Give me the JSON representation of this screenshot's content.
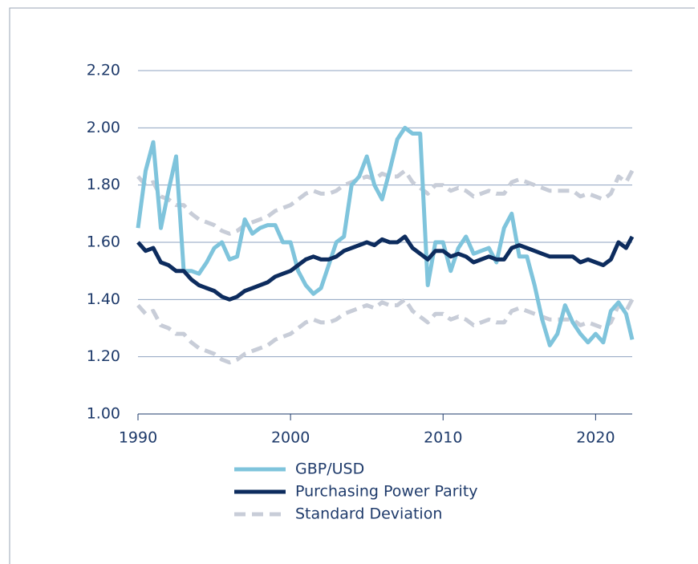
{
  "chart_data": {
    "type": "line",
    "x": [
      1990,
      1990.5,
      1991,
      1991.5,
      1992,
      1992.5,
      1993,
      1993.5,
      1994,
      1994.5,
      1995,
      1995.5,
      1996,
      1996.5,
      1997,
      1997.5,
      1998,
      1998.5,
      1999,
      1999.5,
      2000,
      2000.5,
      2001,
      2001.5,
      2002,
      2002.5,
      2003,
      2003.5,
      2004,
      2004.5,
      2005,
      2005.5,
      2006,
      2006.5,
      2007,
      2007.5,
      2008,
      2008.5,
      2009,
      2009.5,
      2010,
      2010.5,
      2011,
      2011.5,
      2012,
      2012.5,
      2013,
      2013.5,
      2014,
      2014.5,
      2015,
      2015.5,
      2016,
      2016.5,
      2017,
      2017.5,
      2018,
      2018.5,
      2019,
      2019.5,
      2020,
      2020.5,
      2021,
      2021.5,
      2022,
      2022.4
    ],
    "series": [
      {
        "name": "GBP/USD",
        "color": "#7fc4dc",
        "values": [
          1.65,
          1.85,
          1.95,
          1.65,
          1.78,
          1.9,
          1.5,
          1.5,
          1.49,
          1.53,
          1.58,
          1.6,
          1.54,
          1.55,
          1.68,
          1.63,
          1.65,
          1.66,
          1.66,
          1.6,
          1.6,
          1.5,
          1.45,
          1.42,
          1.44,
          1.52,
          1.6,
          1.62,
          1.8,
          1.83,
          1.9,
          1.8,
          1.75,
          1.85,
          1.96,
          2.0,
          1.98,
          1.98,
          1.45,
          1.6,
          1.6,
          1.5,
          1.58,
          1.62,
          1.56,
          1.57,
          1.58,
          1.53,
          1.65,
          1.7,
          1.55,
          1.55,
          1.45,
          1.33,
          1.24,
          1.28,
          1.38,
          1.32,
          1.28,
          1.25,
          1.28,
          1.25,
          1.36,
          1.39,
          1.35,
          1.26
        ]
      },
      {
        "name": "Purchasing Power Parity",
        "color": "#0d2c5e",
        "values": [
          1.6,
          1.57,
          1.58,
          1.53,
          1.52,
          1.5,
          1.5,
          1.47,
          1.45,
          1.44,
          1.43,
          1.41,
          1.4,
          1.41,
          1.43,
          1.44,
          1.45,
          1.46,
          1.48,
          1.49,
          1.5,
          1.52,
          1.54,
          1.55,
          1.54,
          1.54,
          1.55,
          1.57,
          1.58,
          1.59,
          1.6,
          1.59,
          1.61,
          1.6,
          1.6,
          1.62,
          1.58,
          1.56,
          1.54,
          1.57,
          1.57,
          1.55,
          1.56,
          1.55,
          1.53,
          1.54,
          1.55,
          1.54,
          1.54,
          1.58,
          1.59,
          1.58,
          1.57,
          1.56,
          1.55,
          1.55,
          1.55,
          1.55,
          1.53,
          1.54,
          1.53,
          1.52,
          1.54,
          1.6,
          1.58,
          1.62
        ]
      },
      {
        "name": "Standard Deviation",
        "color": "#c8cdd8",
        "dashed": true,
        "upper": [
          1.83,
          1.8,
          1.81,
          1.76,
          1.75,
          1.73,
          1.73,
          1.7,
          1.68,
          1.67,
          1.66,
          1.64,
          1.63,
          1.64,
          1.66,
          1.67,
          1.68,
          1.69,
          1.71,
          1.72,
          1.73,
          1.75,
          1.77,
          1.78,
          1.77,
          1.77,
          1.78,
          1.8,
          1.81,
          1.82,
          1.83,
          1.82,
          1.84,
          1.83,
          1.83,
          1.85,
          1.81,
          1.79,
          1.77,
          1.8,
          1.8,
          1.78,
          1.79,
          1.78,
          1.76,
          1.77,
          1.78,
          1.77,
          1.77,
          1.81,
          1.82,
          1.81,
          1.8,
          1.79,
          1.78,
          1.78,
          1.78,
          1.78,
          1.76,
          1.77,
          1.76,
          1.75,
          1.77,
          1.83,
          1.81,
          1.85
        ],
        "lower": [
          1.38,
          1.35,
          1.36,
          1.31,
          1.3,
          1.28,
          1.28,
          1.25,
          1.23,
          1.22,
          1.21,
          1.19,
          1.18,
          1.19,
          1.21,
          1.22,
          1.23,
          1.24,
          1.26,
          1.27,
          1.28,
          1.3,
          1.32,
          1.33,
          1.32,
          1.32,
          1.33,
          1.35,
          1.36,
          1.37,
          1.38,
          1.37,
          1.39,
          1.38,
          1.38,
          1.4,
          1.36,
          1.34,
          1.32,
          1.35,
          1.35,
          1.33,
          1.34,
          1.33,
          1.31,
          1.32,
          1.33,
          1.32,
          1.32,
          1.36,
          1.37,
          1.36,
          1.35,
          1.34,
          1.33,
          1.33,
          1.33,
          1.33,
          1.31,
          1.32,
          1.31,
          1.3,
          1.32,
          1.38,
          1.36,
          1.4
        ]
      }
    ],
    "xlim": [
      1990,
      2022.4
    ],
    "xticks": [
      1990,
      2000,
      2010,
      2020
    ],
    "ylim": [
      1,
      2.2
    ],
    "yticks": [
      {
        "value": 1,
        "label": "1.00"
      },
      {
        "value": 1.2,
        "label": "1.20"
      },
      {
        "value": 1.4,
        "label": "1.40"
      },
      {
        "value": 1.6,
        "label": "1.60"
      },
      {
        "value": 1.8,
        "label": "1.80"
      },
      {
        "value": 2,
        "label": "2.00"
      },
      {
        "value": 2.2,
        "label": "2.20"
      }
    ],
    "grid": true
  }
}
